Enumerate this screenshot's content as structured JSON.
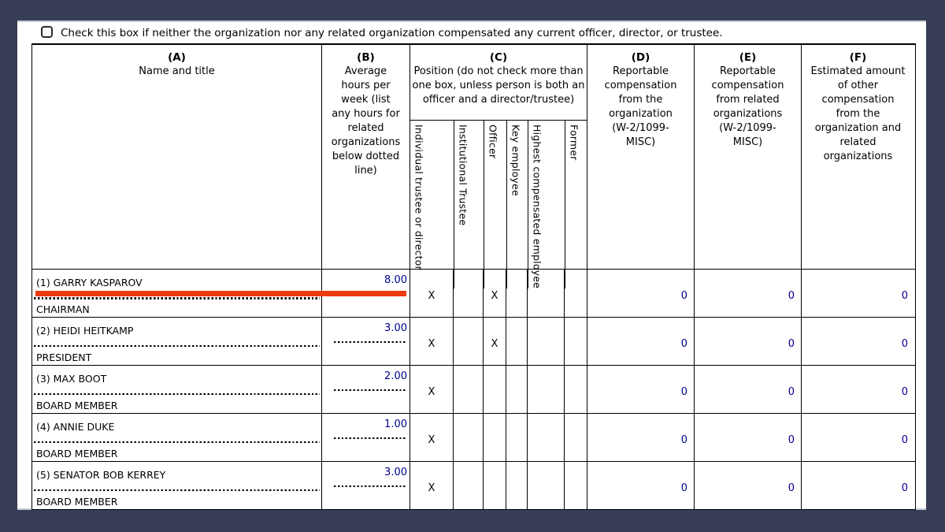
{
  "colors": {
    "page_background": "#383e55",
    "highlight_red": "#ee3a10",
    "value_blue": "#00008b",
    "table_border": "#000000"
  },
  "checkbox_row": {
    "label": "Check this box if neither the organization nor any related organization compensated any current officer, director, or trustee.",
    "checked": false
  },
  "table": {
    "columns": {
      "a": {
        "letter": "(A)",
        "title": "Name and title"
      },
      "b": {
        "letter": "(B)",
        "title": "Average hours per week (list any hours for related organizations below dotted line)"
      },
      "c": {
        "letter": "(C)",
        "title": "Position (do not check more than one box, unless person is both an officer and a director/trustee)",
        "subcolumns": [
          "Individual trustee or director",
          "Institutional Trustee",
          "Officer",
          "Key employee",
          "Highest compensated employee",
          "Former"
        ]
      },
      "d": {
        "letter": "(D)",
        "title": "Reportable compensation from the organization (W-2/1099-MISC)"
      },
      "e": {
        "letter": "(E)",
        "title": "Reportable compensation from related organizations (W-2/1099-MISC)"
      },
      "f": {
        "letter": "(F)",
        "title": "Estimated amount of other compensation from the organization and related organizations"
      }
    },
    "rows": [
      {
        "name": "(1) GARRY KASPAROV",
        "title": "CHAIRMAN",
        "hours": "8.00",
        "positions": [
          "X",
          "",
          "X",
          "",
          "",
          ""
        ],
        "comp_org": "0",
        "comp_related": "0",
        "comp_other": "0",
        "highlighted": true
      },
      {
        "name": "(2) HEIDI HEITKAMP",
        "title": "PRESIDENT",
        "hours": "3.00",
        "positions": [
          "X",
          "",
          "X",
          "",
          "",
          ""
        ],
        "comp_org": "0",
        "comp_related": "0",
        "comp_other": "0",
        "highlighted": false
      },
      {
        "name": "(3) MAX BOOT",
        "title": "BOARD MEMBER",
        "hours": "2.00",
        "positions": [
          "X",
          "",
          "",
          "",
          "",
          ""
        ],
        "comp_org": "0",
        "comp_related": "0",
        "comp_other": "0",
        "highlighted": false
      },
      {
        "name": "(4) ANNIE DUKE",
        "title": "BOARD MEMBER",
        "hours": "1.00",
        "positions": [
          "X",
          "",
          "",
          "",
          "",
          ""
        ],
        "comp_org": "0",
        "comp_related": "0",
        "comp_other": "0",
        "highlighted": false
      },
      {
        "name": "(5) SENATOR BOB KERREY",
        "title": "BOARD MEMBER",
        "hours": "3.00",
        "positions": [
          "X",
          "",
          "",
          "",
          "",
          ""
        ],
        "comp_org": "0",
        "comp_related": "0",
        "comp_other": "0",
        "highlighted": false
      }
    ]
  }
}
